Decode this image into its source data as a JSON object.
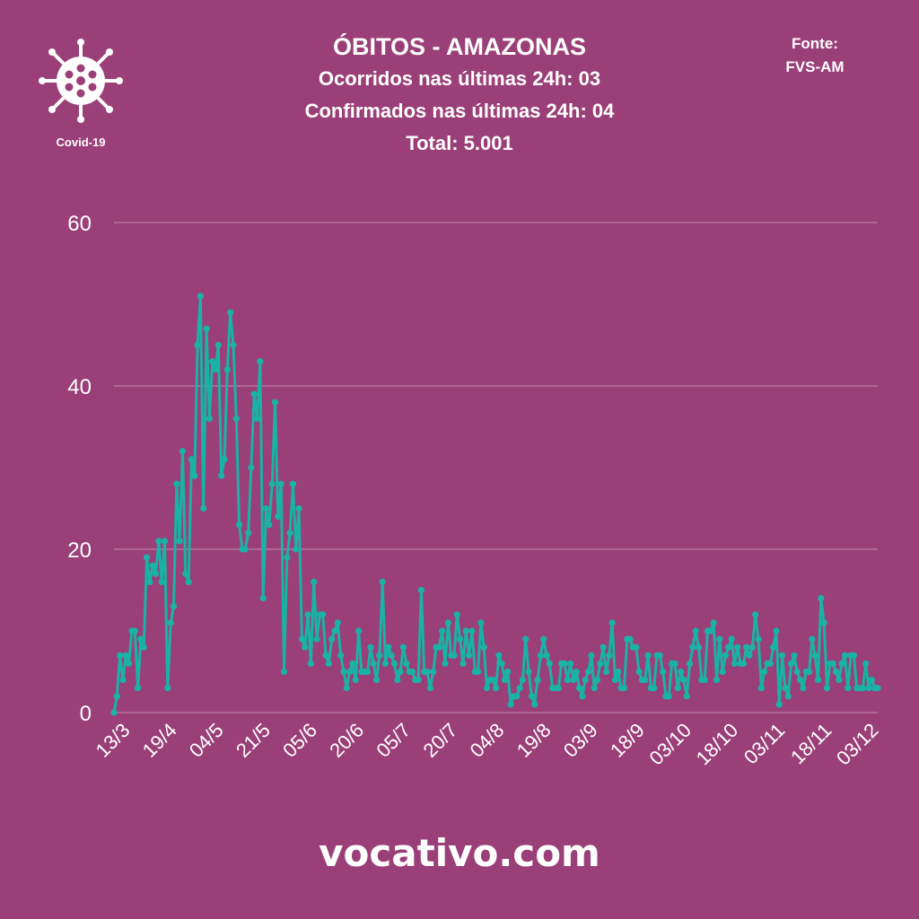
{
  "header": {
    "title": "ÓBITOS - AMAZONAS",
    "occurred": "Ocorridos nas últimas 24h: 03",
    "confirmed": "Confirmados nas últimas 24h: 04",
    "total": "Total: 5.001"
  },
  "logo": {
    "icon": "virus-icon",
    "caption": "Covid-19"
  },
  "source": {
    "label": "Fonte:",
    "value": "FVS-AM"
  },
  "footer": {
    "site": "vocativo.com"
  },
  "colors": {
    "background": "#9a3f78",
    "line": "#19b3a6",
    "grid": "#c58bb0",
    "text": "#ffffff"
  },
  "chart_data": {
    "type": "line",
    "ylim": [
      0,
      60
    ],
    "yticks": [
      0,
      20,
      40,
      60
    ],
    "grid": true,
    "xticks": [
      "13/3",
      "19/4",
      "04/5",
      "21/5",
      "05/6",
      "20/6",
      "05/7",
      "20/7",
      "04/8",
      "19/8",
      "03/9",
      "18/9",
      "03/10",
      "18/10",
      "03/11",
      "18/11",
      "03/12"
    ],
    "series": [
      {
        "values": [
          0,
          2,
          7,
          4,
          7,
          6,
          10,
          10,
          3,
          9,
          8,
          19,
          16,
          18,
          17,
          21,
          16,
          21,
          3,
          11,
          13,
          28,
          21,
          32,
          17,
          16,
          31,
          29,
          45,
          51,
          25,
          47,
          36,
          43,
          42,
          45,
          29,
          31,
          42,
          49,
          45,
          36,
          23,
          20,
          20,
          22,
          30,
          39,
          36,
          43,
          14,
          25,
          23,
          28,
          38,
          24,
          28,
          5,
          19,
          22,
          28,
          20,
          25,
          9,
          8,
          12,
          6,
          16,
          9,
          12,
          12,
          7,
          6,
          9,
          10,
          11,
          7,
          5,
          3,
          5,
          6,
          4,
          10,
          5,
          5,
          5,
          8,
          6,
          4,
          7,
          16,
          6,
          8,
          7,
          6,
          4,
          5,
          8,
          6,
          5,
          5,
          4,
          4,
          15,
          5,
          5,
          3,
          5,
          8,
          8,
          10,
          6,
          11,
          7,
          7,
          12,
          9,
          6,
          10,
          7,
          10,
          5,
          5,
          11,
          8,
          3,
          4,
          4,
          3,
          7,
          6,
          4,
          5,
          1,
          2,
          2,
          3,
          4,
          9,
          5,
          2,
          1,
          4,
          7,
          9,
          7,
          6,
          3,
          3,
          3,
          6,
          6,
          4,
          6,
          4,
          5,
          3,
          2,
          4,
          5,
          7,
          3,
          4,
          6,
          8,
          5,
          7,
          11,
          4,
          5,
          3,
          3,
          9,
          9,
          8,
          8,
          5,
          4,
          4,
          7,
          3,
          3,
          7,
          7,
          5,
          2,
          2,
          6,
          6,
          3,
          5,
          4,
          2,
          6,
          8,
          10,
          8,
          4,
          4,
          10,
          10,
          11,
          4,
          9,
          5,
          7,
          8,
          9,
          6,
          8,
          6,
          6,
          8,
          7,
          8,
          12,
          9,
          3,
          5,
          6,
          6,
          8,
          10,
          1,
          7,
          3,
          2,
          6,
          7,
          5,
          4,
          3,
          5,
          5,
          9,
          7,
          4,
          14,
          11,
          3,
          6,
          6,
          5,
          4,
          6,
          7,
          3,
          7,
          7,
          3,
          3,
          3,
          6,
          3,
          4,
          3,
          3
        ]
      }
    ]
  }
}
